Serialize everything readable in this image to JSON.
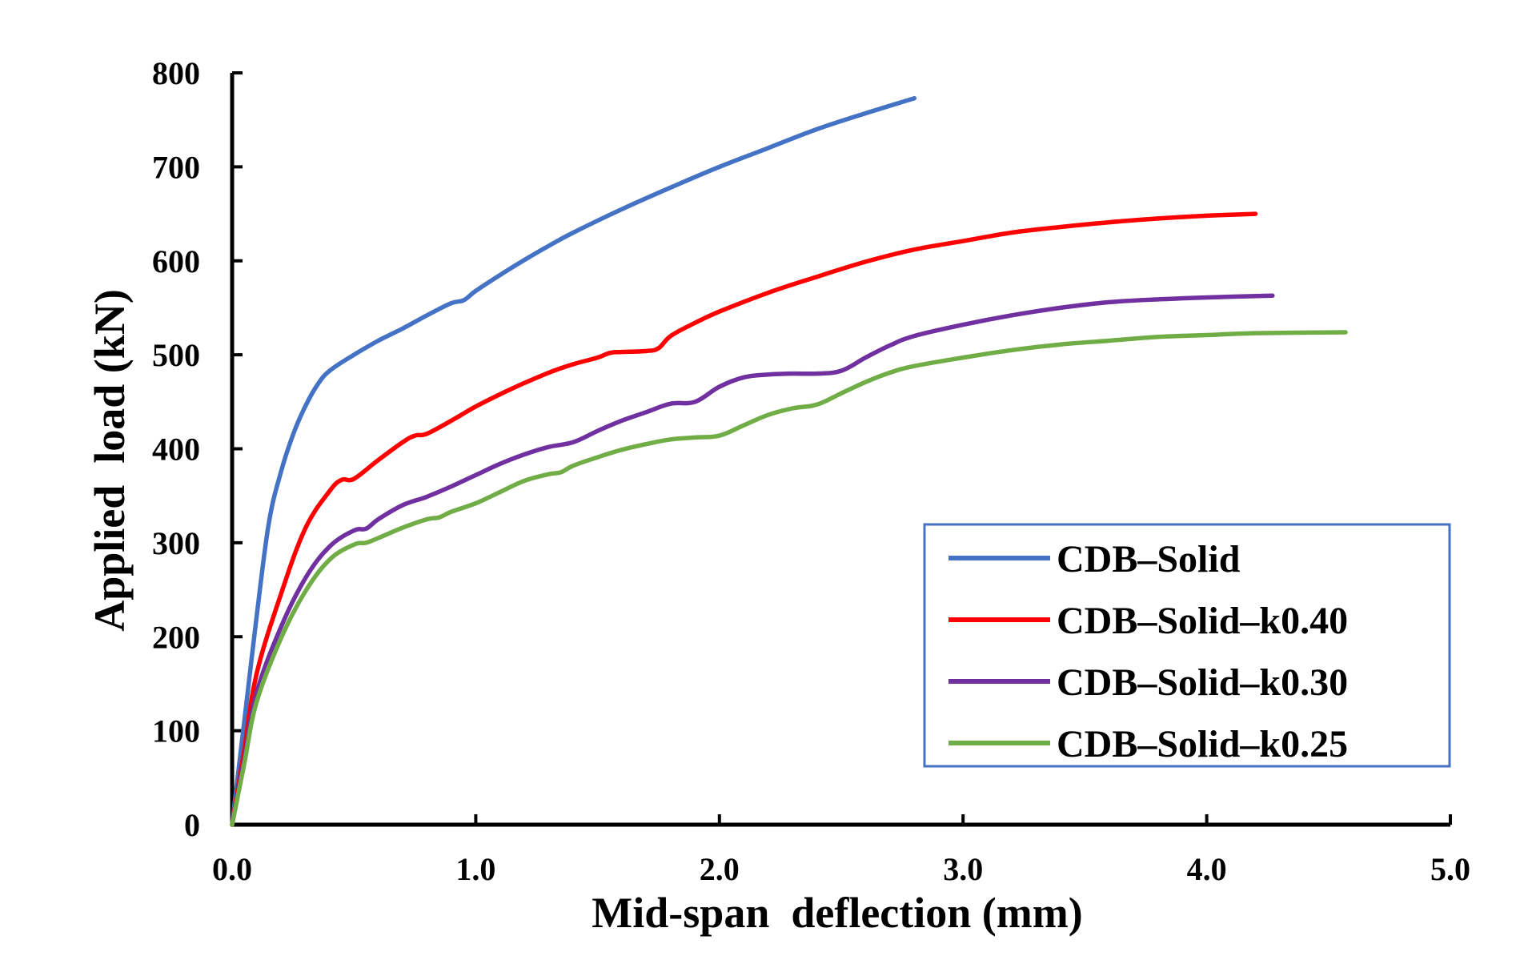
{
  "chart_data": {
    "type": "line",
    "title": "",
    "xlabel": "Mid-span  deflection (mm)",
    "ylabel": "Applied  load (kN)",
    "xlim": [
      0,
      5.0
    ],
    "ylim": [
      0,
      800
    ],
    "x_ticks": [
      0.0,
      1.0,
      2.0,
      3.0,
      4.0,
      5.0
    ],
    "x_tick_labels": [
      "0.0",
      "1.0",
      "2.0",
      "3.0",
      "4.0",
      "5.0"
    ],
    "y_ticks": [
      0,
      100,
      200,
      300,
      400,
      500,
      600,
      700,
      800
    ],
    "y_tick_labels": [
      "0",
      "100",
      "200",
      "300",
      "400",
      "500",
      "600",
      "700",
      "800"
    ],
    "grid": false,
    "legend_position": "bottom-right",
    "series": [
      {
        "name": "CDB–Solid",
        "color": "#4472C4",
        "points": [
          [
            0,
            0
          ],
          [
            0.05,
            110
          ],
          [
            0.1,
            220
          ],
          [
            0.15,
            320
          ],
          [
            0.2,
            375
          ],
          [
            0.25,
            415
          ],
          [
            0.3,
            445
          ],
          [
            0.35,
            468
          ],
          [
            0.4,
            483
          ],
          [
            0.5,
            500
          ],
          [
            0.6,
            515
          ],
          [
            0.7,
            528
          ],
          [
            0.8,
            542
          ],
          [
            0.9,
            555
          ],
          [
            0.95,
            558
          ],
          [
            1.0,
            568
          ],
          [
            1.1,
            585
          ],
          [
            1.2,
            601
          ],
          [
            1.3,
            616
          ],
          [
            1.4,
            630
          ],
          [
            1.6,
            655
          ],
          [
            1.8,
            678
          ],
          [
            2.0,
            700
          ],
          [
            2.2,
            720
          ],
          [
            2.4,
            740
          ],
          [
            2.6,
            757
          ],
          [
            2.8,
            773
          ]
        ]
      },
      {
        "name": "CDB–Solid–k0.40",
        "color": "#FF0000",
        "points": [
          [
            0,
            0
          ],
          [
            0.05,
            80
          ],
          [
            0.1,
            160
          ],
          [
            0.2,
            245
          ],
          [
            0.3,
            315
          ],
          [
            0.4,
            355
          ],
          [
            0.45,
            367
          ],
          [
            0.5,
            368
          ],
          [
            0.6,
            388
          ],
          [
            0.7,
            407
          ],
          [
            0.75,
            414
          ],
          [
            0.8,
            416
          ],
          [
            0.9,
            430
          ],
          [
            1.0,
            445
          ],
          [
            1.1,
            458
          ],
          [
            1.2,
            470
          ],
          [
            1.3,
            481
          ],
          [
            1.4,
            490
          ],
          [
            1.5,
            497
          ],
          [
            1.55,
            502
          ],
          [
            1.6,
            503
          ],
          [
            1.7,
            504
          ],
          [
            1.75,
            507
          ],
          [
            1.8,
            520
          ],
          [
            1.9,
            534
          ],
          [
            2.0,
            546
          ],
          [
            2.2,
            566
          ],
          [
            2.4,
            583
          ],
          [
            2.6,
            599
          ],
          [
            2.8,
            612
          ],
          [
            3.0,
            621
          ],
          [
            3.2,
            630
          ],
          [
            3.4,
            636
          ],
          [
            3.6,
            641
          ],
          [
            3.8,
            645
          ],
          [
            4.0,
            648
          ],
          [
            4.2,
            650
          ]
        ]
      },
      {
        "name": "CDB–Solid–k0.30",
        "color": "#7030A0",
        "points": [
          [
            0,
            0
          ],
          [
            0.05,
            70
          ],
          [
            0.1,
            140
          ],
          [
            0.2,
            210
          ],
          [
            0.3,
            262
          ],
          [
            0.4,
            296
          ],
          [
            0.5,
            313
          ],
          [
            0.55,
            315
          ],
          [
            0.6,
            325
          ],
          [
            0.7,
            340
          ],
          [
            0.8,
            349
          ],
          [
            0.9,
            360
          ],
          [
            1.0,
            372
          ],
          [
            1.1,
            384
          ],
          [
            1.2,
            394
          ],
          [
            1.3,
            402
          ],
          [
            1.4,
            407
          ],
          [
            1.5,
            419
          ],
          [
            1.6,
            430
          ],
          [
            1.7,
            439
          ],
          [
            1.8,
            448
          ],
          [
            1.9,
            450
          ],
          [
            2.0,
            466
          ],
          [
            2.1,
            476
          ],
          [
            2.2,
            479
          ],
          [
            2.3,
            480
          ],
          [
            2.4,
            480
          ],
          [
            2.5,
            483
          ],
          [
            2.6,
            497
          ],
          [
            2.7,
            510
          ],
          [
            2.8,
            520
          ],
          [
            3.0,
            532
          ],
          [
            3.2,
            542
          ],
          [
            3.4,
            550
          ],
          [
            3.6,
            556
          ],
          [
            3.8,
            559
          ],
          [
            4.0,
            561
          ],
          [
            4.27,
            563
          ]
        ]
      },
      {
        "name": "CDB–Solid–k0.25",
        "color": "#70AD47",
        "points": [
          [
            0,
            0
          ],
          [
            0.05,
            65
          ],
          [
            0.1,
            130
          ],
          [
            0.2,
            198
          ],
          [
            0.3,
            248
          ],
          [
            0.4,
            282
          ],
          [
            0.5,
            298
          ],
          [
            0.55,
            300
          ],
          [
            0.6,
            305
          ],
          [
            0.7,
            316
          ],
          [
            0.8,
            325
          ],
          [
            0.85,
            327
          ],
          [
            0.9,
            333
          ],
          [
            1.0,
            342
          ],
          [
            1.1,
            354
          ],
          [
            1.2,
            366
          ],
          [
            1.3,
            373
          ],
          [
            1.35,
            375
          ],
          [
            1.4,
            382
          ],
          [
            1.5,
            391
          ],
          [
            1.6,
            399
          ],
          [
            1.7,
            405
          ],
          [
            1.8,
            410
          ],
          [
            1.9,
            412
          ],
          [
            2.0,
            414
          ],
          [
            2.1,
            425
          ],
          [
            2.2,
            436
          ],
          [
            2.3,
            443
          ],
          [
            2.4,
            447
          ],
          [
            2.5,
            459
          ],
          [
            2.6,
            471
          ],
          [
            2.7,
            481
          ],
          [
            2.8,
            488
          ],
          [
            3.0,
            497
          ],
          [
            3.2,
            505
          ],
          [
            3.4,
            511
          ],
          [
            3.6,
            515
          ],
          [
            3.8,
            519
          ],
          [
            4.0,
            521
          ],
          [
            4.2,
            523
          ],
          [
            4.57,
            524
          ]
        ]
      }
    ]
  }
}
